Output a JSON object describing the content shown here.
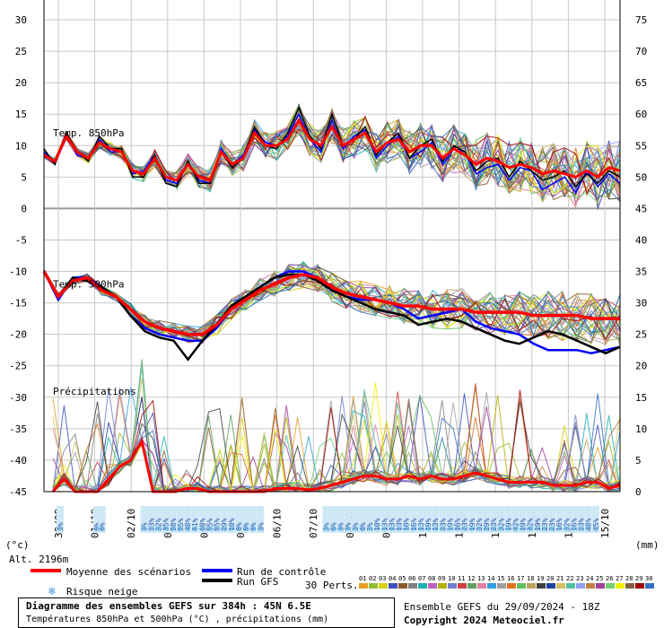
{
  "chart_data": {
    "type": "line",
    "left_axis": {
      "unit": "(°c)",
      "ticks": [
        30,
        25,
        20,
        15,
        10,
        5,
        0,
        -5,
        -10,
        -15,
        -20,
        -25,
        -30,
        -35,
        -40,
        -45
      ]
    },
    "right_axis": {
      "unit": "(mm)",
      "ticks": [
        75,
        70,
        65,
        60,
        55,
        50,
        45,
        40,
        35,
        30,
        25,
        20,
        15,
        10,
        5,
        0
      ]
    },
    "panel_labels": {
      "t850": "Temp. 850hPa",
      "t500": "Temp. 500hPa",
      "precip": "Précipitations"
    },
    "x_dates": [
      "30/09",
      "01/10",
      "02/10",
      "03/10",
      "04/10",
      "05/10",
      "06/10",
      "07/10",
      "08/10",
      "09/10",
      "10/10",
      "11/10",
      "12/10",
      "13/10",
      "14/10",
      "15/10"
    ],
    "altitude": "Alt. 2196m",
    "t850_mean": [
      8.5,
      7.5,
      11.5,
      9,
      8,
      10.5,
      9.5,
      9,
      6,
      5.5,
      8,
      5,
      4.5,
      7,
      5,
      4.5,
      9,
      7,
      8,
      12,
      10,
      10,
      11,
      14,
      11,
      10,
      13,
      10,
      11,
      12,
      9,
      10.5,
      11,
      9,
      10,
      10,
      8,
      9.5,
      8.5,
      7,
      8,
      7.5,
      6.5,
      7,
      6.5,
      5.5,
      6,
      5.5,
      5,
      6,
      5,
      6.5,
      6
    ],
    "t850_control": [
      9,
      7.5,
      12,
      8.5,
      8,
      11,
      9,
      9,
      5.5,
      6,
      8.5,
      4.5,
      4,
      7.5,
      4.5,
      4,
      9.5,
      7,
      8.5,
      12.5,
      10.5,
      10,
      11.5,
      15,
      11,
      9,
      14,
      9.5,
      11.5,
      12.5,
      8,
      10,
      11.5,
      8,
      9,
      10.5,
      7,
      9.5,
      9,
      5.5,
      6.5,
      7,
      4.5,
      6.5,
      6,
      3,
      4,
      5,
      2.5,
      6,
      3.5,
      5.5,
      4
    ],
    "t850_gfs": [
      9.5,
      7,
      12,
      9,
      7.5,
      11.5,
      9.5,
      9.5,
      5,
      5,
      8.5,
      4,
      3.5,
      7.5,
      4,
      4,
      9,
      6.5,
      8,
      13,
      10,
      9.5,
      12,
      16,
      11.5,
      9.5,
      15,
      10,
      11,
      13,
      8.5,
      10.5,
      12,
      8,
      10,
      11,
      7.5,
      10,
      9,
      6,
      7.5,
      8,
      5,
      7.5,
      6,
      4.5,
      5,
      6,
      3.5,
      5.5,
      4,
      6,
      5
    ],
    "t500_mean": [
      -10,
      -14,
      -11.5,
      -11,
      -13,
      -14,
      -16,
      -18,
      -19,
      -19.5,
      -20,
      -20,
      -18.5,
      -16,
      -14.5,
      -13,
      -12,
      -11,
      -10.5,
      -11,
      -12.5,
      -13.5,
      -14,
      -14.5,
      -15,
      -15.5,
      -15.5,
      -16,
      -16,
      -16,
      -16.5,
      -16.5,
      -16.5,
      -16.5,
      -17,
      -17,
      -17,
      -17,
      -17.5,
      -17.5,
      -17.5
    ],
    "t500_control": [
      -10,
      -14.5,
      -11,
      -11,
      -12.5,
      -14,
      -17,
      -19,
      -20,
      -20.5,
      -21,
      -21,
      -19,
      -16,
      -14,
      -12.5,
      -11,
      -10,
      -10,
      -11,
      -13,
      -14,
      -14.5,
      -14.5,
      -15,
      -16,
      -17.5,
      -17,
      -16.5,
      -16,
      -18,
      -19,
      -19.5,
      -20,
      -21.5,
      -22.5,
      -22.5,
      -22.5,
      -23,
      -22.5,
      -22
    ],
    "t500_gfs": [
      -10,
      -14,
      -11,
      -11.5,
      -12.5,
      -14,
      -17,
      -19.5,
      -20.5,
      -21,
      -24,
      -21,
      -18.5,
      -15.5,
      -14,
      -12.5,
      -11,
      -10.5,
      -10.5,
      -11.5,
      -13,
      -14,
      -15,
      -16,
      -16.5,
      -17,
      -18.5,
      -18,
      -17.5,
      -18,
      -19,
      -20,
      -21,
      -21.5,
      -20.5,
      -19.5,
      -20,
      -21,
      -22,
      -23,
      -22
    ],
    "precip_mean": [
      0,
      2,
      0,
      0,
      0,
      2,
      4,
      5,
      8,
      0,
      0,
      0,
      0.5,
      0.5,
      0,
      0,
      0,
      0,
      0,
      0,
      0.5,
      0.5,
      0.5,
      0.3,
      0.5,
      1,
      1.5,
      2,
      2.5,
      2.5,
      2,
      2,
      2.5,
      2,
      2.5,
      2,
      2,
      2.5,
      3,
      2.5,
      2,
      1.5,
      1.5,
      1.5,
      1.5,
      1,
      1,
      1,
      1.5,
      1.5,
      0.5,
      1
    ],
    "snow_risk": [
      {
        "date_index": 0,
        "pct": "3%"
      },
      {
        "date_index": 1,
        "pct": "6%"
      },
      {
        "date_index": 1.15,
        "pct": "6%"
      },
      {
        "date_index": 2.3,
        "pct": "3%"
      },
      {
        "date_index": 2.5,
        "pct": "23%"
      },
      {
        "date_index": 2.7,
        "pct": "32%"
      },
      {
        "date_index": 2.9,
        "pct": "35%"
      },
      {
        "date_index": 3.1,
        "pct": "58%"
      },
      {
        "date_index": 3.3,
        "pct": "55%"
      },
      {
        "date_index": 3.5,
        "pct": "48%"
      },
      {
        "date_index": 3.7,
        "pct": "61%"
      },
      {
        "date_index": 3.9,
        "pct": "68%"
      },
      {
        "date_index": 4.1,
        "pct": "55%"
      },
      {
        "date_index": 4.3,
        "pct": "55%"
      },
      {
        "date_index": 4.5,
        "pct": "29%"
      },
      {
        "date_index": 4.7,
        "pct": "10%"
      },
      {
        "date_index": 4.9,
        "pct": "6%"
      },
      {
        "date_index": 5.1,
        "pct": "6%"
      },
      {
        "date_index": 5.3,
        "pct": "6%"
      },
      {
        "date_index": 5.5,
        "pct": "3%"
      },
      {
        "date_index": 7.3,
        "pct": "3%"
      },
      {
        "date_index": 7.5,
        "pct": "6%"
      },
      {
        "date_index": 7.7,
        "pct": "3%"
      },
      {
        "date_index": 7.9,
        "pct": "3%"
      },
      {
        "date_index": 8.1,
        "pct": "3%"
      },
      {
        "date_index": 8.3,
        "pct": "6%"
      },
      {
        "date_index": 8.5,
        "pct": "3%"
      },
      {
        "date_index": 8.7,
        "pct": "10%"
      },
      {
        "date_index": 8.9,
        "pct": "13%"
      },
      {
        "date_index": 9.1,
        "pct": "13%"
      },
      {
        "date_index": 9.3,
        "pct": "13%"
      },
      {
        "date_index": 9.5,
        "pct": "10%"
      },
      {
        "date_index": 9.7,
        "pct": "16%"
      },
      {
        "date_index": 9.9,
        "pct": "13%"
      },
      {
        "date_index": 10.1,
        "pct": "19%"
      },
      {
        "date_index": 10.3,
        "pct": "13%"
      },
      {
        "date_index": 10.5,
        "pct": "23%"
      },
      {
        "date_index": 10.7,
        "pct": "19%"
      },
      {
        "date_index": 10.9,
        "pct": "16%"
      },
      {
        "date_index": 11.1,
        "pct": "23%"
      },
      {
        "date_index": 11.3,
        "pct": "19%"
      },
      {
        "date_index": 11.5,
        "pct": "32%"
      },
      {
        "date_index": 11.7,
        "pct": "29%"
      },
      {
        "date_index": 11.9,
        "pct": "23%"
      },
      {
        "date_index": 12.1,
        "pct": "32%"
      },
      {
        "date_index": 12.3,
        "pct": "19%"
      },
      {
        "date_index": 12.5,
        "pct": "42%"
      },
      {
        "date_index": 12.7,
        "pct": "19%"
      },
      {
        "date_index": 12.9,
        "pct": "32%"
      },
      {
        "date_index": 13.1,
        "pct": "19%"
      },
      {
        "date_index": 13.3,
        "pct": "23%"
      },
      {
        "date_index": 13.5,
        "pct": "23%"
      },
      {
        "date_index": 13.7,
        "pct": "16%"
      },
      {
        "date_index": 13.9,
        "pct": "32%"
      },
      {
        "date_index": 14.1,
        "pct": "16%"
      },
      {
        "date_index": 14.3,
        "pct": "23%"
      },
      {
        "date_index": 14.5,
        "pct": "48%"
      },
      {
        "date_index": 14.7,
        "pct": "45%"
      }
    ],
    "series": [
      {
        "name": "Moyenne des scénarios",
        "color": "#ff0000"
      },
      {
        "name": "Run de contrôle",
        "color": "#0000ff"
      },
      {
        "name": "Run GFS",
        "color": "#000000"
      }
    ],
    "snow_legend": "Risque neige",
    "perts_label": "30 Perts.",
    "pert_numbers": [
      "01",
      "02",
      "03",
      "04",
      "05",
      "06",
      "07",
      "08",
      "09",
      "10",
      "11",
      "12",
      "13",
      "14",
      "15",
      "16",
      "17",
      "18",
      "19",
      "20",
      "21",
      "22",
      "23",
      "24",
      "25",
      "26",
      "27",
      "28",
      "29",
      "30"
    ],
    "pert_colors": [
      "#e6a020",
      "#8fbc2f",
      "#d8d010",
      "#4050c0",
      "#8b5a2b",
      "#808080",
      "#20b0b0",
      "#c060c0",
      "#b0b000",
      "#7080d0",
      "#d04040",
      "#60a060",
      "#e080a0",
      "#30a0e0",
      "#a0a0a0",
      "#e07020",
      "#60c060",
      "#c0a060",
      "#404040",
      "#2040a0",
      "#d0c060",
      "#50c0a0",
      "#90a0f0",
      "#c08040",
      "#a040a0",
      "#70d070",
      "#f0f000",
      "#806040",
      "#a00000",
      "#3070c0"
    ]
  },
  "footer": {
    "title": "Diagramme des ensembles GEFS sur 384h : 45N 6.5E",
    "subtitle": "Températures 850hPa et 500hPa (°C) , précipitations (mm)",
    "run_info": "Ensemble GEFS du 29/09/2024 - 18Z",
    "copyright": "Copyright 2024 Meteociel.fr"
  }
}
